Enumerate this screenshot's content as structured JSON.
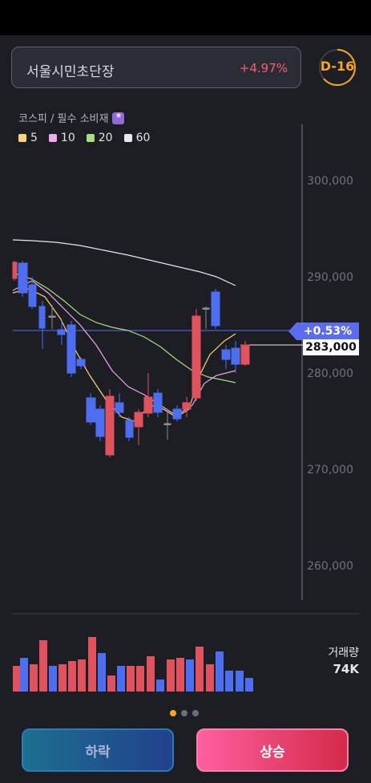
{
  "header": {
    "stock_name": "서울시민초단장",
    "change": "+4.97%",
    "dday": "D-16"
  },
  "category": "코스피 / 필수 소비재",
  "category_icon": "sticker-icon",
  "legend": [
    {
      "label": "5",
      "color": "#ffd37a"
    },
    {
      "label": "10",
      "color": "#f0a8f0"
    },
    {
      "label": "20",
      "color": "#a6e07a"
    },
    {
      "label": "60",
      "color": "#e6e6f5"
    }
  ],
  "price_axis": [
    "300,000",
    "290,000",
    "280,000",
    "270,000",
    "260,000"
  ],
  "chart": {
    "change_badge": "+0.53%",
    "current_price": "283,000"
  },
  "volume": {
    "label": "거래량",
    "value": "74K"
  },
  "colors": {
    "up": "#e0525e",
    "down": "#4d6ef0",
    "accent": "#f5a623"
  },
  "buttons": {
    "down": "하락",
    "up": "상승"
  },
  "pager": {
    "pages": 3,
    "active": 0
  }
}
